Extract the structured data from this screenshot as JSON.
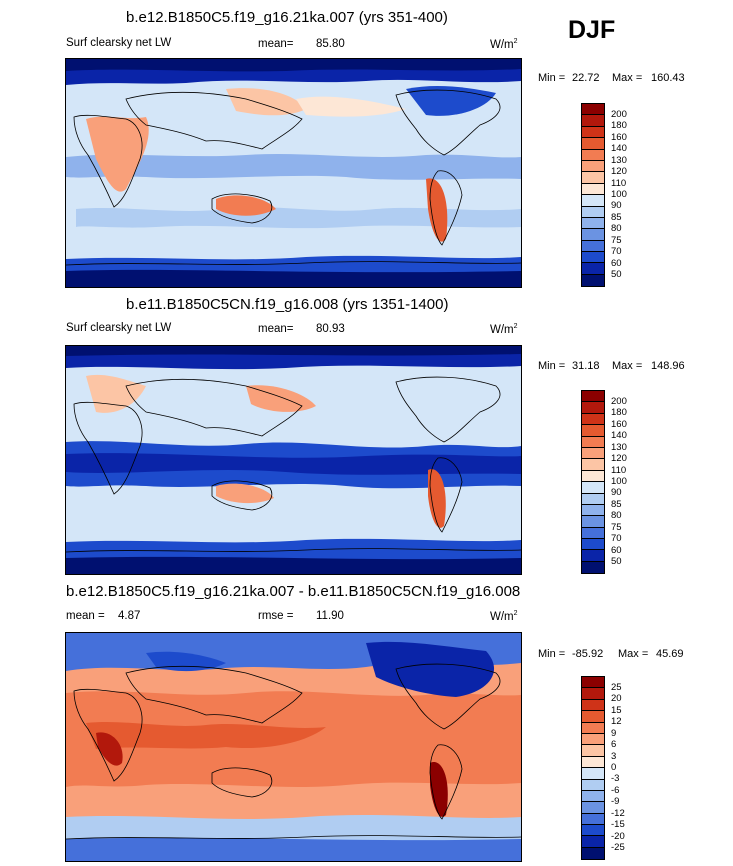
{
  "season": "DJF",
  "chart_data": [
    {
      "type": "heatmap",
      "title": "b.e12.B1850C5.f19_g16.21ka.007 (yrs 351-400)",
      "left_label": "Surf clearsky net LW",
      "stat_label": "mean=",
      "stat_value": "85.80",
      "units": "W/m",
      "units_exp": "2",
      "min_label": "Min =",
      "min_value": "22.72",
      "max_label": "Max =",
      "max_value": "160.43",
      "levels": [
        "200",
        "180",
        "160",
        "140",
        "130",
        "120",
        "110",
        "100",
        "90",
        "85",
        "80",
        "75",
        "70",
        "60",
        "50"
      ],
      "colors": [
        "#8b0000",
        "#b2180c",
        "#cf3318",
        "#e55a30",
        "#f27c52",
        "#f9a07a",
        "#fcc5a5",
        "#fde7d6",
        "#d4e6f8",
        "#b0cdf2",
        "#8fb2ec",
        "#6b93e2",
        "#4570da",
        "#1d4bcc",
        "#0a24a8",
        "#001070"
      ]
    },
    {
      "type": "heatmap",
      "title": "b.e11.B1850C5CN.f19_g16.008 (yrs 1351-1400)",
      "left_label": "Surf clearsky net LW",
      "stat_label": "mean=",
      "stat_value": "80.93",
      "units": "W/m",
      "units_exp": "2",
      "min_label": "Min =",
      "min_value": "31.18",
      "max_label": "Max =",
      "max_value": "148.96",
      "levels": [
        "200",
        "180",
        "160",
        "140",
        "130",
        "120",
        "110",
        "100",
        "90",
        "85",
        "80",
        "75",
        "70",
        "60",
        "50"
      ],
      "colors": [
        "#8b0000",
        "#b2180c",
        "#cf3318",
        "#e55a30",
        "#f27c52",
        "#f9a07a",
        "#fcc5a5",
        "#fde7d6",
        "#d4e6f8",
        "#b0cdf2",
        "#8fb2ec",
        "#6b93e2",
        "#4570da",
        "#1d4bcc",
        "#0a24a8",
        "#001070"
      ]
    },
    {
      "type": "heatmap",
      "title": "b.e12.B1850C5.f19_g16.21ka.007 - b.e11.B1850C5CN.f19_g16.008",
      "left_label": "mean =",
      "stat_label": "rmse =",
      "mean_value": "4.87",
      "stat_value": "11.90",
      "units": "W/m",
      "units_exp": "2",
      "min_label": "Min =",
      "min_value": "-85.92",
      "max_label": "Max =",
      "max_value": "45.69",
      "levels": [
        "25",
        "20",
        "15",
        "12",
        "9",
        "6",
        "3",
        "0",
        "-3",
        "-6",
        "-9",
        "-12",
        "-15",
        "-20",
        "-25"
      ],
      "colors": [
        "#8b0000",
        "#b2180c",
        "#cf3318",
        "#e55a30",
        "#f27c52",
        "#f9a07a",
        "#fcc5a5",
        "#fde7d6",
        "#d4e6f8",
        "#b0cdf2",
        "#8fb2ec",
        "#6b93e2",
        "#4570da",
        "#1d4bcc",
        "#0a24a8",
        "#001070"
      ]
    }
  ]
}
